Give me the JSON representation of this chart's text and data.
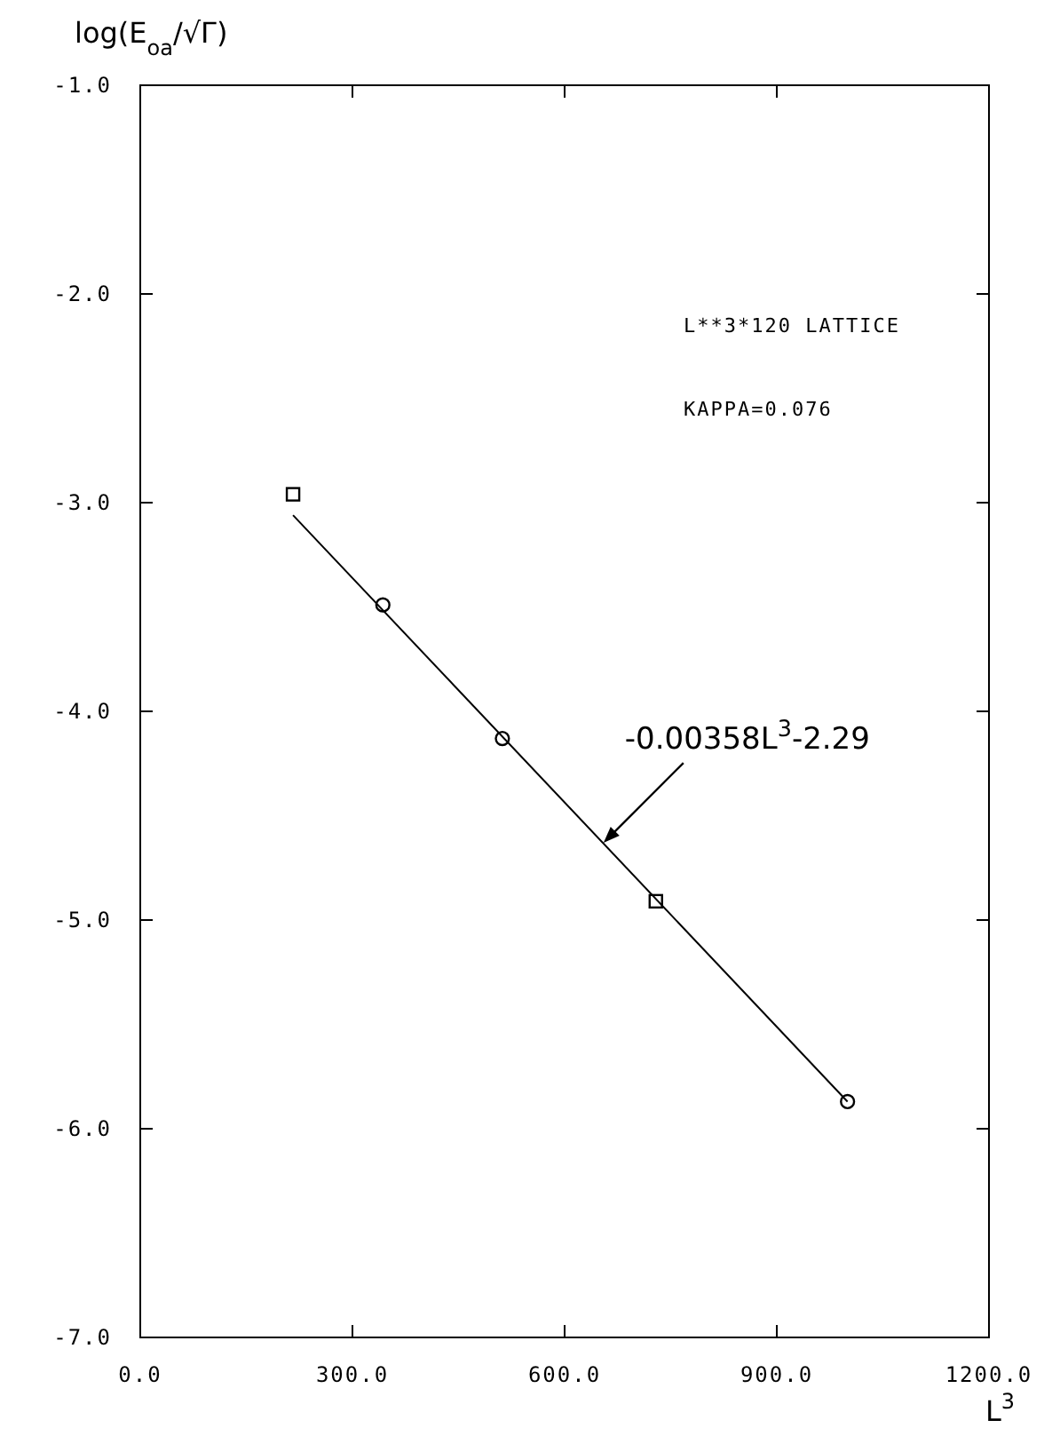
{
  "chart_data": {
    "type": "scatter",
    "xlabel": "L$^{3}$",
    "ylabel": "log(E$_{oa}$/√Γ)",
    "xlim": [
      0,
      1200
    ],
    "xticks": [
      {
        "value": 0,
        "label": "0.0"
      },
      {
        "value": 300,
        "label": "300.0"
      },
      {
        "value": 600,
        "label": "600.0"
      },
      {
        "value": 900,
        "label": "900.0"
      },
      {
        "value": 1200,
        "label": "1200.0"
      }
    ],
    "ylim": [
      -7,
      -1
    ],
    "yticks": [
      {
        "value": -7,
        "label": "-7.0"
      },
      {
        "value": -6,
        "label": "-6.0"
      },
      {
        "value": -5,
        "label": "-5.0"
      },
      {
        "value": -4,
        "label": "-4.0"
      },
      {
        "value": -3,
        "label": "-3.0"
      },
      {
        "value": -2,
        "label": "-2.0"
      },
      {
        "value": -1,
        "label": "-1.0"
      }
    ],
    "grid": false,
    "series": [
      {
        "marker": "square",
        "color": "#000000",
        "x": [
          216,
          729
        ],
        "values": [
          -2.96,
          -4.91
        ]
      },
      {
        "marker": "circle",
        "color": "#000000",
        "x": [
          343,
          512,
          1000
        ],
        "values": [
          -3.49,
          -4.13,
          -5.87
        ]
      },
      {
        "type": "line",
        "marker": "none",
        "line_style": "solid",
        "color": "#000000",
        "x": [
          216,
          1000
        ],
        "values": [
          -3.06,
          -5.87
        ]
      }
    ],
    "annotations": [
      "L**3*120 LATTICE",
      "KAPPA=0.076",
      {
        "text": "-0.00358L$^{3}$-2.29",
        "x": 655,
        "y": -4.63
      }
    ]
  }
}
